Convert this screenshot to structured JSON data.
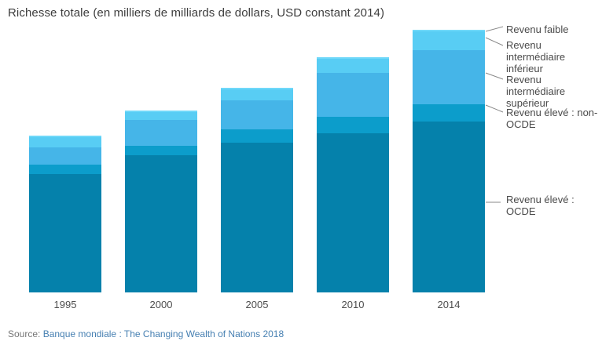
{
  "title": "Richesse totale (en milliers de milliards de dollars, USD constant 2014)",
  "legend": {
    "faible": "Revenu faible",
    "interm_inf": "Revenu\nintermédiaire\ninférieur",
    "interm_sup": "Revenu\nintermédiaire\nsupérieur",
    "non_ocde": "Revenu élevé : non-\nOCDE",
    "ocde": "Revenu élevé :\nOCDE"
  },
  "source": {
    "prefix": "Source:",
    "link": "Banque mondiale : The Changing Wealth of Nations 2018"
  },
  "colors": {
    "faible": "#6fd8f9",
    "interm_inf": "#58cdf4",
    "interm_sup": "#45b5e8",
    "non_ocde": "#0c9dcb",
    "ocde": "#0581ab",
    "leader_line": "#8a8a8a",
    "title_text": "#3d3d3d",
    "axis_text": "#4d4d4d",
    "source_link": "#4780b2"
  },
  "chart_data": {
    "type": "bar",
    "stacked": true,
    "title": "Richesse totale (en milliers de milliards de dollars, USD constant 2014)",
    "xlabel": "",
    "ylabel": "milliers de milliards de dollars (USD constant 2014)",
    "categories": [
      "1995",
      "2000",
      "2005",
      "2010",
      "2014"
    ],
    "series": [
      {
        "key": "ocde",
        "name": "Revenu élevé : OCDE",
        "color": "#0581ab",
        "values": [
          515,
          597,
          652,
          693,
          744
        ]
      },
      {
        "key": "non_ocde",
        "name": "Revenu élevé : non-OCDE",
        "color": "#0c9dcb",
        "values": [
          41,
          40,
          57,
          72,
          75
        ]
      },
      {
        "key": "interm_sup",
        "name": "Revenu intermédiaire supérieur",
        "color": "#45b5e8",
        "values": [
          75,
          114,
          126,
          191,
          235
        ]
      },
      {
        "key": "interm_inf",
        "name": "Revenu intermédiaire inférieur",
        "color": "#58cdf4",
        "values": [
          46,
          35,
          50,
          62,
          82
        ]
      },
      {
        "key": "faible",
        "name": "Revenu faible",
        "color": "#6fd8f9",
        "values": [
          5,
          5,
          5,
          6,
          7
        ]
      }
    ],
    "totals": [
      682,
      791,
      890,
      1024,
      1143
    ],
    "ylim": [
      0,
      1200
    ],
    "grid": false,
    "legend_position": "right-annotations"
  }
}
